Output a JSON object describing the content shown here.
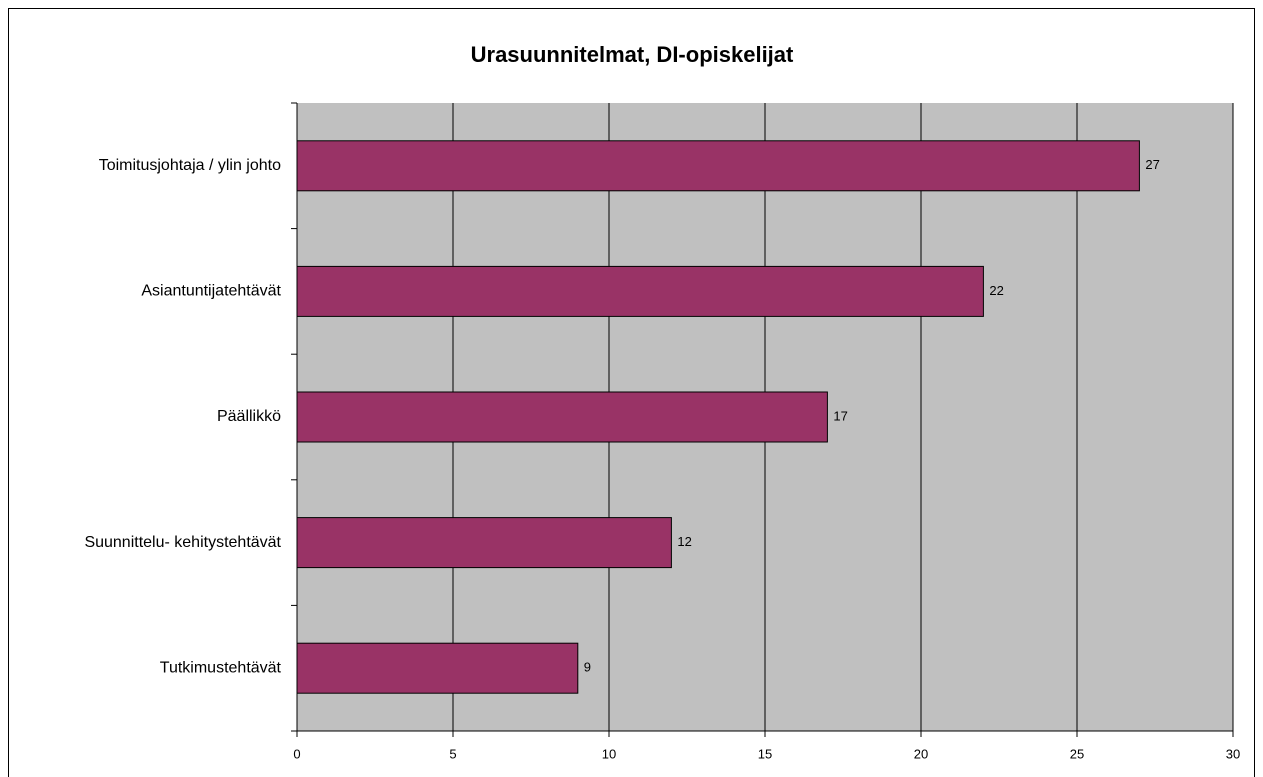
{
  "chart_data": {
    "type": "bar",
    "orientation": "horizontal",
    "title": "Urasuunnitelmat, DI-opiskelijat",
    "categories": [
      "Toimitusjohtaja / ylin johto",
      "Asiantuntijatehtävät",
      "Päällikkö",
      "Suunnittelu- kehitystehtävät",
      "Tutkimustehtävät"
    ],
    "values": [
      27,
      22,
      17,
      12,
      9
    ],
    "color": "#993366",
    "plot_background": "#c0c0c0",
    "xlim": [
      0,
      30
    ],
    "xticks": [
      0,
      5,
      10,
      15,
      20,
      25,
      30
    ],
    "grid": true
  }
}
